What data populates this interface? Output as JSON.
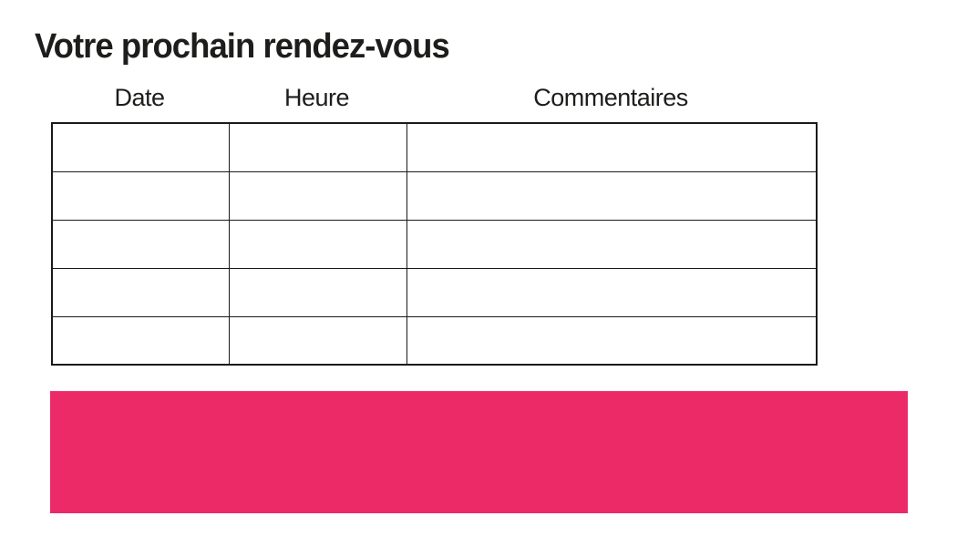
{
  "page": {
    "title": "Votre prochain rendez-vous"
  },
  "table": {
    "columns": [
      {
        "label": "Date"
      },
      {
        "label": "Heure"
      },
      {
        "label": "Commentaires"
      }
    ],
    "rows": [
      {
        "date": "",
        "heure": "",
        "commentaires": ""
      },
      {
        "date": "",
        "heure": "",
        "commentaires": ""
      },
      {
        "date": "",
        "heure": "",
        "commentaires": ""
      },
      {
        "date": "",
        "heure": "",
        "commentaires": ""
      },
      {
        "date": "",
        "heure": "",
        "commentaires": ""
      }
    ]
  },
  "colors": {
    "banner": "#ed2a68",
    "text": "#1d1d1b",
    "border": "#1a1a1a"
  }
}
